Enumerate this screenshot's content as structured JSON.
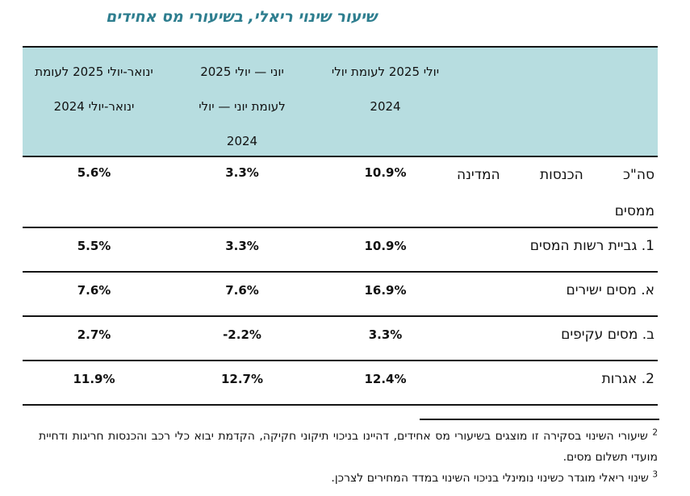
{
  "title": "שיעור שינוי ריאלי, בשיעורי מס אחידים",
  "table": {
    "columns": [
      {
        "id": "jan_jul",
        "header_lines": [
          "ינואר-יולי 2025 לעומת",
          "ינואר-יולי 2024"
        ]
      },
      {
        "id": "jun_jul",
        "header_lines": [
          "יוני — יולי 2025",
          "לעומת יוני — יולי",
          "2024"
        ]
      },
      {
        "id": "jul",
        "header_lines": [
          "יולי 2025 לעומת יולי",
          "2024"
        ]
      },
      {
        "id": "labels",
        "header_lines": []
      }
    ],
    "rows": [
      {
        "label_lines": [
          "סה\"כ הכנסות המדינה",
          "ממסים"
        ],
        "values": {
          "jul": "10.9%",
          "jun_jul": "3.3%",
          "jan_jul": "5.6%"
        }
      },
      {
        "label_lines": [
          "1. גביית רשות המסים"
        ],
        "values": {
          "jul": "10.9%",
          "jun_jul": "3.3%",
          "jan_jul": "5.5%"
        }
      },
      {
        "label_lines": [
          "א. מסים ישירים"
        ],
        "values": {
          "jul": "16.9%",
          "jun_jul": "7.6%",
          "jan_jul": "7.6%"
        }
      },
      {
        "label_lines": [
          "ב. מסים עקיפים"
        ],
        "values": {
          "jul": "3.3%",
          "jun_jul": "-2.2%",
          "jan_jul": "2.7%"
        }
      },
      {
        "label_lines": [
          "2. אגרות"
        ],
        "values": {
          "jul": "12.4%",
          "jun_jul": "12.7%",
          "jan_jul": "11.9%"
        }
      }
    ]
  },
  "footnotes": [
    {
      "marker": "2",
      "text": "שיעורי השינוי בסקירה זו מוצגים בשיעורי מס אחידים, דהיינו בניכוי תיקוני חקיקה, הקדמת יבוא כלי רכב והכנסות חריגות ודחיית מועדי תשלום מסים."
    },
    {
      "marker": "3",
      "text": "שינוי ריאלי מוגדר כשינוי נומינלי בניכוי השינוי במדד המחירים לצרכן."
    }
  ],
  "colors": {
    "title": "#2E7E8F",
    "header_bg": "#B7DDE0",
    "border": "#141414"
  }
}
